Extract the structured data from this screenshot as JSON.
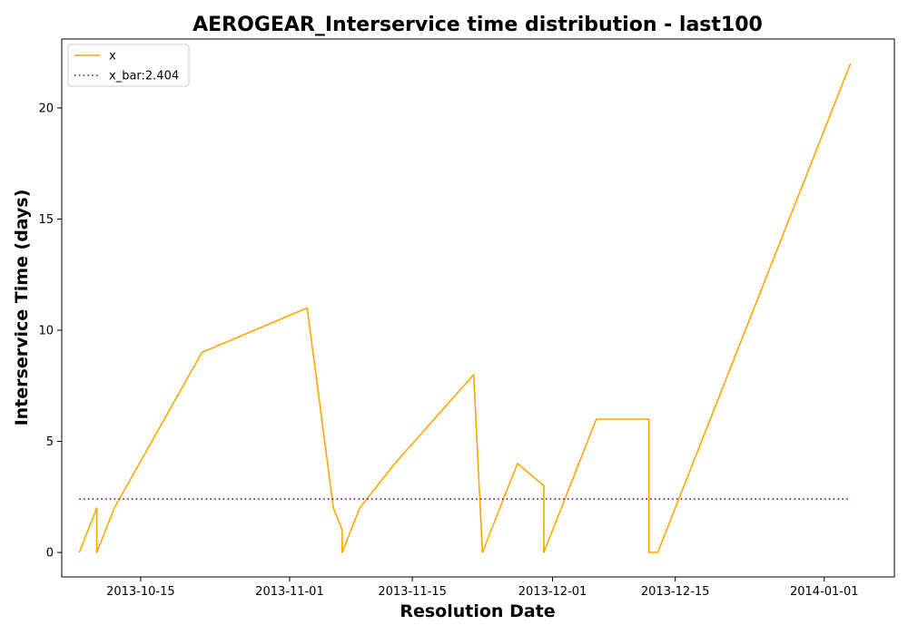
{
  "chart_data": {
    "type": "line",
    "title": "AEROGEAR_Interservice time distribution - last100",
    "xlabel": "Resolution Date",
    "ylabel": "Interservice Time (days)",
    "x_ticks": [
      "2013-10-15",
      "2013-11-01",
      "2013-11-15",
      "2013-12-01",
      "2013-12-15",
      "2014-01-01"
    ],
    "y_ticks": [
      "0",
      "5",
      "10",
      "15",
      "20"
    ],
    "xlim": [
      "2013-10-06",
      "2014-01-09"
    ],
    "ylim": [
      -1.1,
      23.1
    ],
    "grid": false,
    "legend_position": "top-left",
    "series": [
      {
        "name": "x",
        "color": "#FFA500",
        "style": "solid",
        "x": [
          "2013-10-08",
          "2013-10-10",
          "2013-10-10",
          "2013-10-12",
          "2013-10-22",
          "2013-11-03",
          "2013-11-06",
          "2013-11-07",
          "2013-11-07",
          "2013-11-09",
          "2013-11-13",
          "2013-11-22",
          "2013-11-23",
          "2013-11-27",
          "2013-11-30",
          "2013-11-30",
          "2013-12-06",
          "2013-12-12",
          "2013-12-12",
          "2013-12-13",
          "2014-01-04"
        ],
        "values": [
          0,
          2,
          0,
          2,
          9,
          11,
          2,
          1,
          0,
          2,
          4,
          8,
          0,
          4,
          3,
          0,
          6,
          6,
          0,
          0,
          22
        ]
      },
      {
        "name": "x_bar:2.404",
        "color": "#800080",
        "style": "dotted",
        "x": [
          "2013-10-08",
          "2014-01-04"
        ],
        "values": [
          2.404,
          2.404
        ]
      }
    ]
  }
}
